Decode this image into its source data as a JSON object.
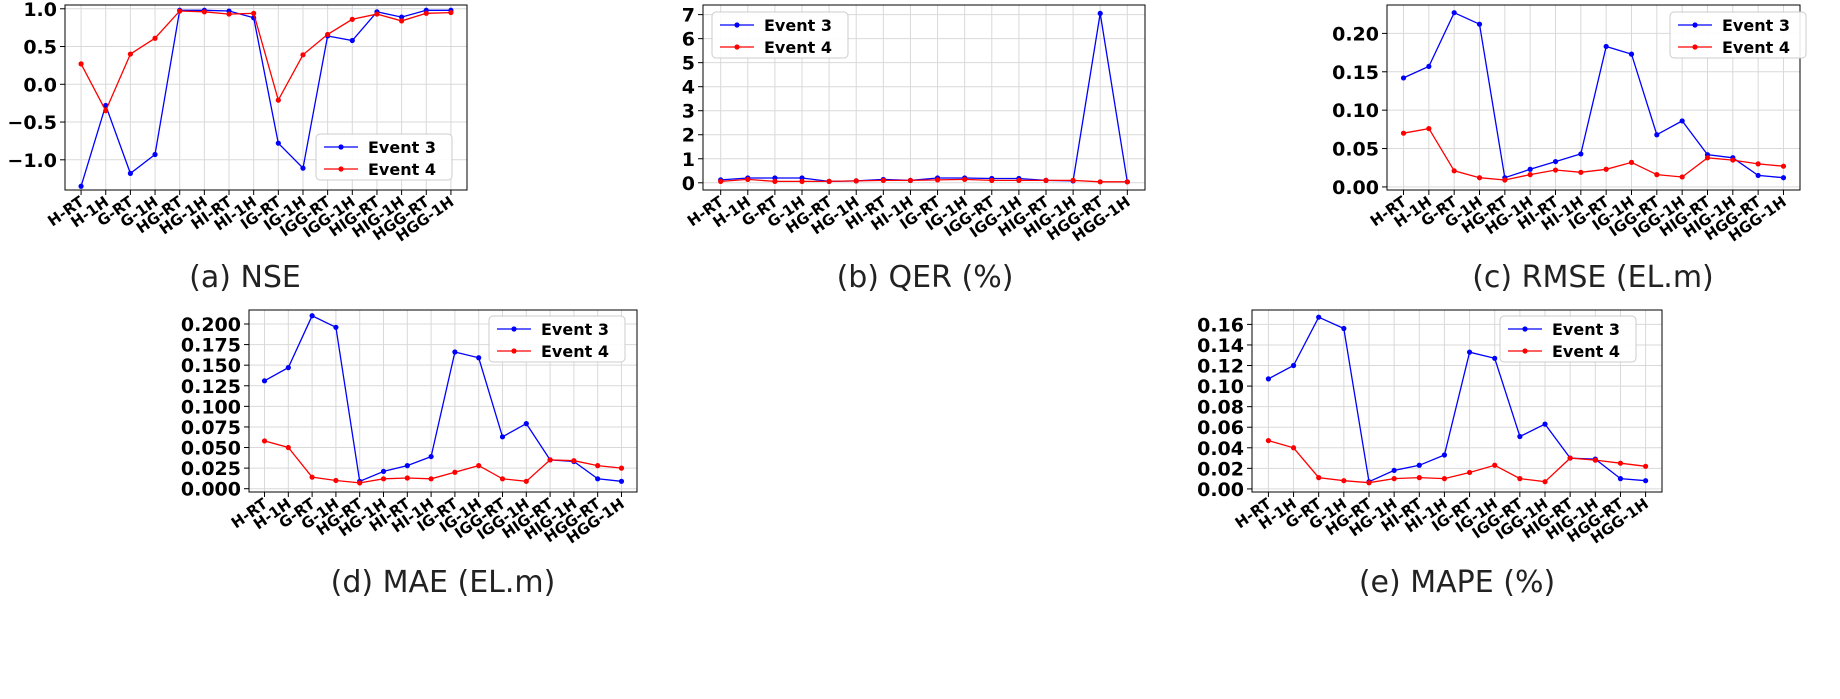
{
  "chart_data": [
    {
      "id": "nse",
      "type": "line",
      "caption": "(a) NSE",
      "title": "",
      "xlabel": "",
      "ylabel": "",
      "categories": [
        "H-RT",
        "H-1H",
        "G-RT",
        "G-1H",
        "HG-RT",
        "HG-1H",
        "HI-RT",
        "HI-1H",
        "IG-RT",
        "IG-1H",
        "IGG-RT",
        "IGG-1H",
        "HIG-RT",
        "HIG-1H",
        "HGG-RT",
        "HGG-1H"
      ],
      "ylim": [
        -1.4,
        1.05
      ],
      "yticks": [
        -1.0,
        -0.5,
        0.0,
        0.5,
        1.0
      ],
      "ytick_labels": [
        "−1.0",
        "−0.5",
        "0.0",
        "0.5",
        "1.0"
      ],
      "grid": true,
      "legend_position": "lower-right",
      "series": [
        {
          "name": "Event 3",
          "color": "#0000ff",
          "values": [
            -1.35,
            -0.28,
            -1.18,
            -0.93,
            0.98,
            0.98,
            0.97,
            0.88,
            -0.78,
            -1.11,
            0.64,
            0.58,
            0.96,
            0.89,
            0.98,
            0.98
          ]
        },
        {
          "name": "Event 4",
          "color": "#ff0000",
          "values": [
            0.27,
            -0.35,
            0.4,
            0.61,
            0.97,
            0.96,
            0.93,
            0.94,
            -0.21,
            0.39,
            0.66,
            0.86,
            0.93,
            0.84,
            0.94,
            0.95
          ]
        }
      ]
    },
    {
      "id": "qer",
      "type": "line",
      "caption": "(b) QER (%)",
      "title": "",
      "xlabel": "",
      "ylabel": "",
      "categories": [
        "H-RT",
        "H-1H",
        "G-RT",
        "G-1H",
        "HG-RT",
        "HG-1H",
        "HI-RT",
        "HI-1H",
        "IG-RT",
        "IG-1H",
        "IGG-RT",
        "IGG-1H",
        "HIG-RT",
        "HIG-1H",
        "HGG-RT",
        "HGG-1H"
      ],
      "ylim": [
        -0.3,
        7.4
      ],
      "yticks": [
        0,
        1,
        2,
        3,
        4,
        5,
        6,
        7
      ],
      "ytick_labels": [
        "0",
        "1",
        "2",
        "3",
        "4",
        "5",
        "6",
        "7"
      ],
      "grid": true,
      "legend_position": "top-left",
      "series": [
        {
          "name": "Event 3",
          "color": "#0000ff",
          "values": [
            0.12,
            0.2,
            0.2,
            0.2,
            0.06,
            0.08,
            0.14,
            0.1,
            0.2,
            0.2,
            0.18,
            0.18,
            0.1,
            0.08,
            7.05,
            0.04
          ]
        },
        {
          "name": "Event 4",
          "color": "#ff0000",
          "values": [
            0.06,
            0.14,
            0.06,
            0.06,
            0.06,
            0.08,
            0.1,
            0.1,
            0.12,
            0.14,
            0.1,
            0.1,
            0.1,
            0.1,
            0.04,
            0.04
          ]
        }
      ]
    },
    {
      "id": "rmse",
      "type": "line",
      "caption": "(c) RMSE (EL.m)",
      "title": "",
      "xlabel": "",
      "ylabel": "",
      "categories": [
        "H-RT",
        "H-1H",
        "G-RT",
        "G-1H",
        "HG-RT",
        "HG-1H",
        "HI-RT",
        "HI-1H",
        "IG-RT",
        "IG-1H",
        "IGG-RT",
        "IGG-1H",
        "HIG-RT",
        "HIG-1H",
        "HGG-RT",
        "HGG-1H"
      ],
      "ylim": [
        -0.004,
        0.237
      ],
      "yticks": [
        0.0,
        0.05,
        0.1,
        0.15,
        0.2
      ],
      "ytick_labels": [
        "0.00",
        "0.05",
        "0.10",
        "0.15",
        "0.20"
      ],
      "grid": true,
      "legend_position": "top-right",
      "series": [
        {
          "name": "Event 3",
          "color": "#0000ff",
          "values": [
            0.142,
            0.157,
            0.227,
            0.212,
            0.012,
            0.023,
            0.033,
            0.043,
            0.183,
            0.173,
            0.068,
            0.086,
            0.042,
            0.038,
            0.015,
            0.012
          ]
        },
        {
          "name": "Event 4",
          "color": "#ff0000",
          "values": [
            0.07,
            0.076,
            0.021,
            0.012,
            0.009,
            0.016,
            0.022,
            0.019,
            0.023,
            0.032,
            0.016,
            0.013,
            0.038,
            0.035,
            0.03,
            0.027
          ]
        }
      ]
    },
    {
      "id": "mae",
      "type": "line",
      "caption": "(d) MAE (EL.m)",
      "title": "",
      "xlabel": "",
      "ylabel": "",
      "categories": [
        "H-RT",
        "H-1H",
        "G-RT",
        "G-1H",
        "HG-RT",
        "HG-1H",
        "HI-RT",
        "HI-1H",
        "IG-RT",
        "IG-1H",
        "IGG-RT",
        "IGG-1H",
        "HIG-RT",
        "HIG-1H",
        "HGG-RT",
        "HGG-1H"
      ],
      "ylim": [
        -0.004,
        0.217
      ],
      "yticks": [
        0.0,
        0.025,
        0.05,
        0.075,
        0.1,
        0.125,
        0.15,
        0.175,
        0.2
      ],
      "ytick_labels": [
        "0.000",
        "0.025",
        "0.050",
        "0.075",
        "0.100",
        "0.125",
        "0.150",
        "0.175",
        "0.200"
      ],
      "grid": true,
      "legend_position": "top-right",
      "series": [
        {
          "name": "Event 3",
          "color": "#0000ff",
          "values": [
            0.131,
            0.147,
            0.21,
            0.196,
            0.009,
            0.021,
            0.028,
            0.039,
            0.166,
            0.159,
            0.063,
            0.079,
            0.035,
            0.033,
            0.012,
            0.009
          ]
        },
        {
          "name": "Event 4",
          "color": "#ff0000",
          "values": [
            0.058,
            0.05,
            0.014,
            0.01,
            0.007,
            0.012,
            0.013,
            0.012,
            0.02,
            0.028,
            0.012,
            0.009,
            0.035,
            0.034,
            0.028,
            0.025
          ]
        }
      ]
    },
    {
      "id": "mape",
      "type": "line",
      "caption": "(e) MAPE (%)",
      "title": "",
      "xlabel": "",
      "ylabel": "",
      "categories": [
        "H-RT",
        "H-1H",
        "G-RT",
        "G-1H",
        "HG-RT",
        "HG-1H",
        "HI-RT",
        "HI-1H",
        "IG-RT",
        "IG-1H",
        "IGG-RT",
        "IGG-1H",
        "HIG-RT",
        "HIG-1H",
        "HGG-RT",
        "HGG-1H"
      ],
      "ylim": [
        -0.003,
        0.174
      ],
      "yticks": [
        0.0,
        0.02,
        0.04,
        0.06,
        0.08,
        0.1,
        0.12,
        0.14,
        0.16
      ],
      "ytick_labels": [
        "0.00",
        "0.02",
        "0.04",
        "0.06",
        "0.08",
        "0.10",
        "0.12",
        "0.14",
        "0.16"
      ],
      "grid": true,
      "legend_position": "top-right",
      "series": [
        {
          "name": "Event 3",
          "color": "#0000ff",
          "values": [
            0.107,
            0.12,
            0.167,
            0.156,
            0.007,
            0.018,
            0.023,
            0.033,
            0.133,
            0.127,
            0.051,
            0.063,
            0.03,
            0.029,
            0.01,
            0.008
          ]
        },
        {
          "name": "Event 4",
          "color": "#ff0000",
          "values": [
            0.047,
            0.04,
            0.011,
            0.008,
            0.006,
            0.01,
            0.011,
            0.01,
            0.016,
            0.023,
            0.01,
            0.007,
            0.03,
            0.028,
            0.025,
            0.022
          ]
        }
      ]
    }
  ]
}
